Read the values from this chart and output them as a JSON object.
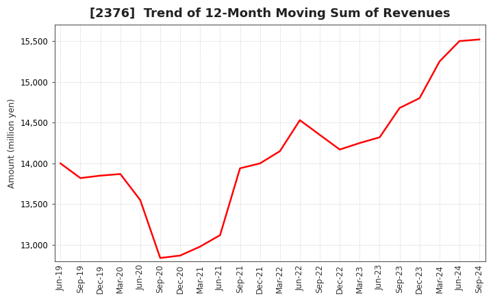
{
  "title": "[2376]  Trend of 12-Month Moving Sum of Revenues",
  "ylabel": "Amount (million yen)",
  "line_color": "#ff0000",
  "line_width": 1.8,
  "background_color": "#ffffff",
  "grid_color": "#999999",
  "xlabels": [
    "Jun-19",
    "Sep-19",
    "Dec-19",
    "Mar-20",
    "Jun-20",
    "Sep-20",
    "Dec-20",
    "Mar-21",
    "Jun-21",
    "Sep-21",
    "Dec-21",
    "Mar-22",
    "Jun-22",
    "Sep-22",
    "Dec-22",
    "Mar-23",
    "Jun-23",
    "Sep-23",
    "Dec-23",
    "Mar-24",
    "Jun-24",
    "Sep-24"
  ],
  "values": [
    14000,
    13820,
    13850,
    13870,
    13550,
    12840,
    12870,
    12980,
    13120,
    13940,
    14000,
    14150,
    14530,
    14350,
    14170,
    14250,
    14320,
    14680,
    14800,
    15250,
    15500,
    15520
  ],
  "ylim": [
    12800,
    15700
  ],
  "yticks": [
    13000,
    13500,
    14000,
    14500,
    15000,
    15500
  ],
  "title_fontsize": 13,
  "axis_fontsize": 9,
  "tick_fontsize": 8.5
}
